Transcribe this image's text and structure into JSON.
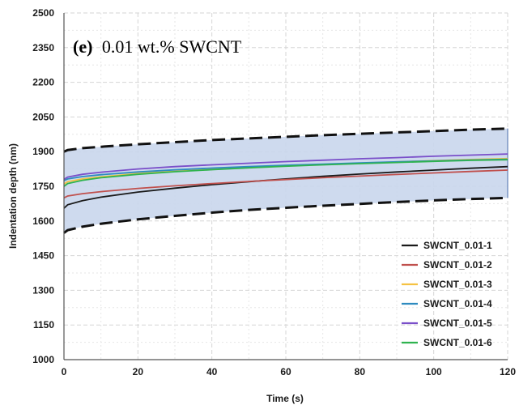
{
  "chart_data": {
    "type": "line",
    "title_prefix": "(e)",
    "title_text": "0.01 wt.% SWCNT",
    "xlabel": "Time (s)",
    "ylabel": "Indentation depth (nm)",
    "xlim": [
      0,
      120
    ],
    "ylim": [
      1000,
      2500
    ],
    "xticks": [
      0,
      20,
      40,
      60,
      80,
      100,
      120
    ],
    "yticks": [
      1000,
      1150,
      1300,
      1450,
      1600,
      1750,
      1900,
      2050,
      2200,
      2350,
      2500
    ],
    "grid": true,
    "legend_position": "bottom-right",
    "band": {
      "color": "#c9d6ec",
      "upper": {
        "x": [
          0,
          1,
          5,
          10,
          20,
          30,
          40,
          50,
          60,
          70,
          80,
          90,
          100,
          110,
          120
        ],
        "y": [
          1900,
          1907,
          1915,
          1921,
          1932,
          1941,
          1950,
          1957,
          1964,
          1971,
          1977,
          1983,
          1989,
          1995,
          2000
        ]
      },
      "lower": {
        "x": [
          0,
          1,
          5,
          10,
          20,
          30,
          40,
          50,
          60,
          70,
          80,
          90,
          100,
          110,
          120
        ],
        "y": [
          1548,
          1560,
          1575,
          1588,
          1607,
          1622,
          1636,
          1648,
          1657,
          1666,
          1674,
          1682,
          1689,
          1695,
          1700
        ]
      }
    },
    "x": [
      0,
      1,
      5,
      10,
      20,
      30,
      40,
      50,
      60,
      70,
      80,
      90,
      100,
      110,
      120
    ],
    "series": [
      {
        "name": "SWCNT_0.01-1",
        "color": "#1a1a1a",
        "values": [
          1655,
          1670,
          1688,
          1703,
          1725,
          1742,
          1757,
          1770,
          1782,
          1793,
          1803,
          1812,
          1820,
          1828,
          1835
        ]
      },
      {
        "name": "SWCNT_0.01-2",
        "color": "#c0504d",
        "values": [
          1700,
          1708,
          1718,
          1727,
          1741,
          1752,
          1762,
          1771,
          1779,
          1787,
          1794,
          1801,
          1808,
          1814,
          1820
        ]
      },
      {
        "name": "SWCNT_0.01-3",
        "color": "#f5c242",
        "values": [
          1760,
          1770,
          1782,
          1791,
          1805,
          1815,
          1823,
          1831,
          1838,
          1844,
          1850,
          1856,
          1861,
          1866,
          1870
        ]
      },
      {
        "name": "SWCNT_0.01-4",
        "color": "#2e8bc0",
        "values": [
          1775,
          1782,
          1792,
          1800,
          1812,
          1821,
          1829,
          1835,
          1841,
          1846,
          1851,
          1856,
          1860,
          1864,
          1867
        ]
      },
      {
        "name": "SWCNT_0.01-5",
        "color": "#7a4fc9",
        "values": [
          1780,
          1790,
          1802,
          1811,
          1825,
          1835,
          1843,
          1850,
          1857,
          1863,
          1869,
          1874,
          1880,
          1885,
          1890
        ]
      },
      {
        "name": "SWCNT_0.01-6",
        "color": "#2fb34f",
        "values": [
          1750,
          1762,
          1776,
          1787,
          1802,
          1813,
          1822,
          1830,
          1837,
          1843,
          1848,
          1853,
          1858,
          1862,
          1865
        ]
      }
    ]
  }
}
